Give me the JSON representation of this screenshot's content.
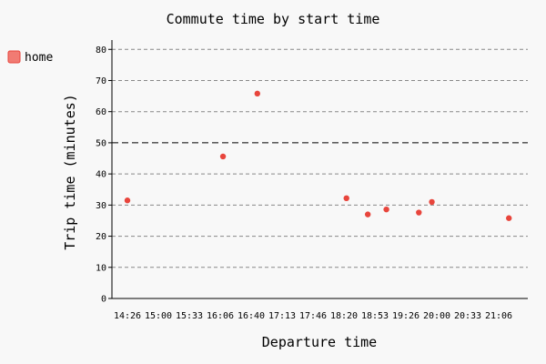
{
  "chart_data": {
    "type": "scatter",
    "title": "Commute time by start time",
    "xlabel": "Departure time",
    "ylabel": "Trip time (minutes)",
    "x_tick_labels": [
      "14:26",
      "15:00",
      "15:33",
      "16:06",
      "16:40",
      "17:13",
      "17:46",
      "18:20",
      "18:53",
      "19:26",
      "20:00",
      "20:33",
      "21:06"
    ],
    "xlim": [
      "14:22",
      "22:00"
    ],
    "ylim": [
      0,
      83
    ],
    "y_ticks": [
      0,
      10,
      20,
      30,
      40,
      50,
      60,
      70,
      80
    ],
    "grid": true,
    "reference_line_y": 50,
    "legend_position": "top-left",
    "series": [
      {
        "name": "home",
        "color": "#e8453c",
        "points": [
          {
            "x": "14:26",
            "y": 31.5
          },
          {
            "x": "16:09",
            "y": 45.6
          },
          {
            "x": "16:46",
            "y": 65.8
          },
          {
            "x": "18:22",
            "y": 32.2
          },
          {
            "x": "18:45",
            "y": 27.0
          },
          {
            "x": "19:05",
            "y": 28.6
          },
          {
            "x": "19:40",
            "y": 27.6
          },
          {
            "x": "19:54",
            "y": 31.0
          },
          {
            "x": "21:17",
            "y": 25.8
          }
        ]
      }
    ]
  }
}
